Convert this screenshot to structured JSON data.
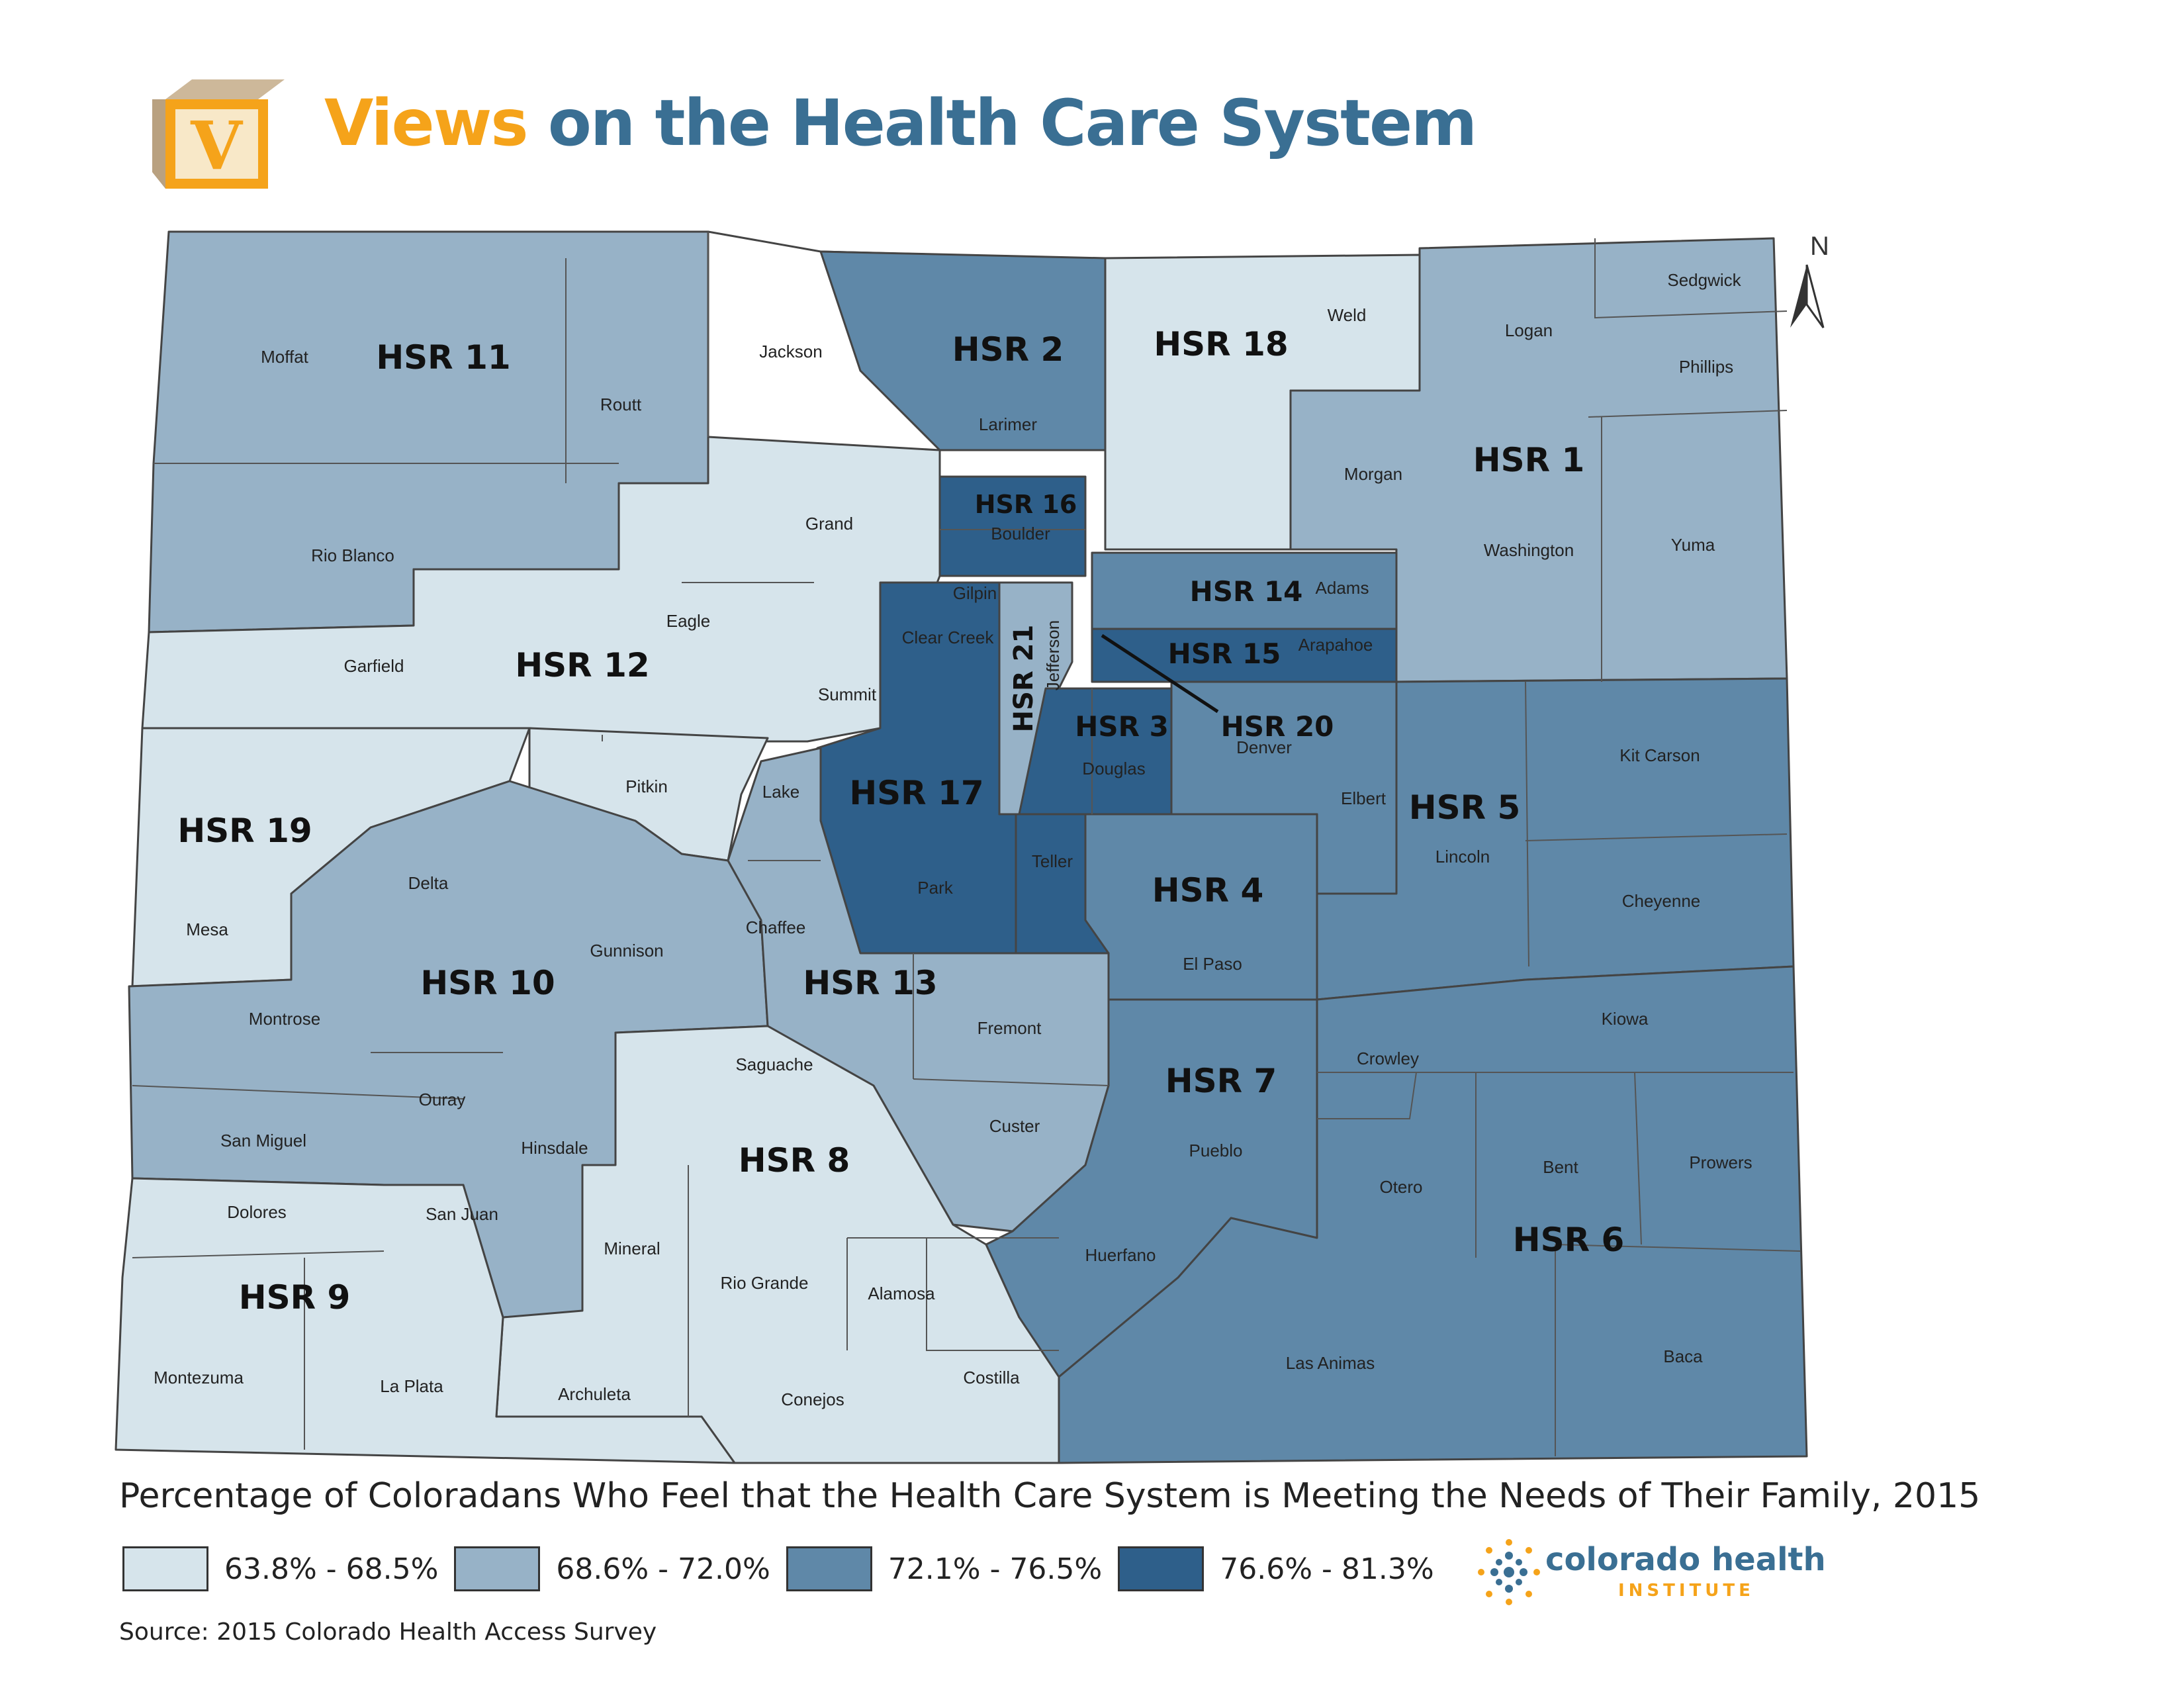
{
  "header": {
    "logo_letter": "V",
    "title_accent": "Views",
    "title_rest": "on the Health Care System"
  },
  "north_label": "N",
  "caption": "Percentage of Coloradans Who Feel that the Health Care System is Meeting the Needs of Their Family, 2015",
  "legend": [
    {
      "label": "63.8% - 68.5%",
      "color": "#d6e4eb"
    },
    {
      "label": "68.6% - 72.0%",
      "color": "#97b2c7"
    },
    {
      "label": "72.1% - 76.5%",
      "color": "#5f88a8"
    },
    {
      "label": "76.6% - 81.3%",
      "color": "#2e5f8a"
    }
  ],
  "brand": {
    "name": "colorado health",
    "sub": "INSTITUTE",
    "colors": {
      "blue": "#3a6f93",
      "orange": "#f5a31a"
    }
  },
  "source": "Source: 2015 Colorado Health Access Survey",
  "map": {
    "hsr_labels": [
      "HSR 1",
      "HSR 2",
      "HSR 3",
      "HSR 4",
      "HSR 5",
      "HSR 6",
      "HSR 7",
      "HSR 8",
      "HSR 9",
      "HSR 10",
      "HSR 11",
      "HSR 12",
      "HSR 13",
      "HSR 14",
      "HSR 15",
      "HSR 16",
      "HSR 17",
      "HSR 18",
      "HSR 19",
      "HSR 20",
      "HSR 21"
    ],
    "counties": [
      "Moffat",
      "Routt",
      "Jackson",
      "Larimer",
      "Weld",
      "Logan",
      "Sedgwick",
      "Phillips",
      "Rio Blanco",
      "Grand",
      "Boulder",
      "Morgan",
      "Washington",
      "Yuma",
      "Garfield",
      "Eagle",
      "Gilpin",
      "Clear Creek",
      "Summit",
      "Adams",
      "Arapahoe",
      "Jefferson",
      "Denver",
      "Douglas",
      "Elbert",
      "Kit Carson",
      "Lincoln",
      "Mesa",
      "Pitkin",
      "Lake",
      "Park",
      "Teller",
      "Delta",
      "Gunnison",
      "Chaffee",
      "El Paso",
      "Cheyenne",
      "Montrose",
      "Fremont",
      "Kiowa",
      "Ouray",
      "Saguache",
      "Crowley",
      "San Miguel",
      "Hinsdale",
      "Custer",
      "Pueblo",
      "Bent",
      "Prowers",
      "Otero",
      "Dolores",
      "San Juan",
      "Mineral",
      "Rio Grande",
      "Alamosa",
      "Huerfano",
      "Montezuma",
      "La Plata",
      "Archuleta",
      "Conejos",
      "Costilla",
      "Las Animas",
      "Baca"
    ]
  }
}
